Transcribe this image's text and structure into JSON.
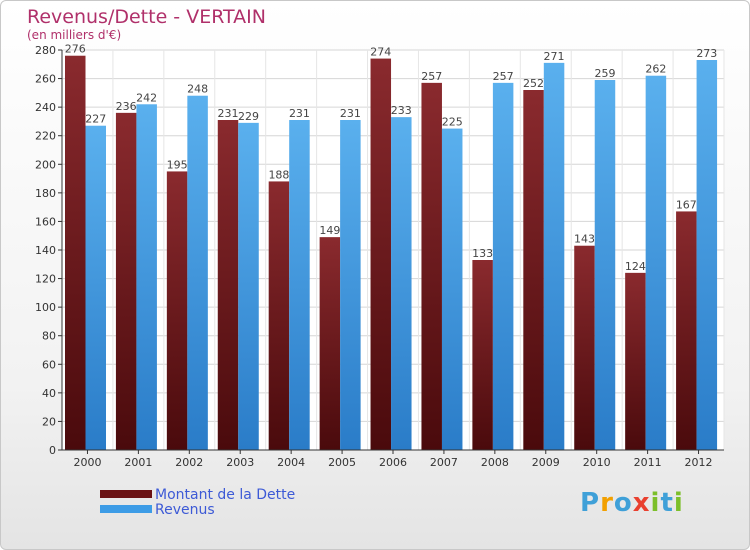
{
  "title": "Revenus/Dette - VERTAIN",
  "subtitle": "(en milliers d'€)",
  "logo": {
    "letters": [
      "P",
      "r",
      "o",
      "x",
      "i",
      "t",
      "i"
    ],
    "colors": [
      "#3fa0d8",
      "#f2a000",
      "#3fa0d8",
      "#e9402f",
      "#7cbf2a",
      "#3fa0d8",
      "#7cbf2a"
    ]
  },
  "colors": {
    "dette": "#7a1e22",
    "revenus": "#3d9ce6",
    "legend_text": "#3d5ad6",
    "title": "#b0306a"
  },
  "chart_data": {
    "type": "bar",
    "categories": [
      "2000",
      "2001",
      "2002",
      "2003",
      "2004",
      "2005",
      "2006",
      "2007",
      "2008",
      "2009",
      "2010",
      "2011",
      "2012"
    ],
    "series": [
      {
        "name": "Montant de la Dette",
        "values": [
          276,
          236,
          195,
          231,
          188,
          149,
          274,
          257,
          133,
          252,
          143,
          124,
          167
        ]
      },
      {
        "name": "Revenus",
        "values": [
          227,
          242,
          248,
          229,
          231,
          231,
          233,
          225,
          257,
          271,
          259,
          262,
          273
        ]
      }
    ],
    "ylim": [
      0,
      280
    ],
    "yticks": [
      0,
      20,
      40,
      60,
      80,
      100,
      120,
      140,
      160,
      180,
      200,
      220,
      240,
      260,
      280
    ],
    "grid": true,
    "legend": "bottom-left"
  }
}
